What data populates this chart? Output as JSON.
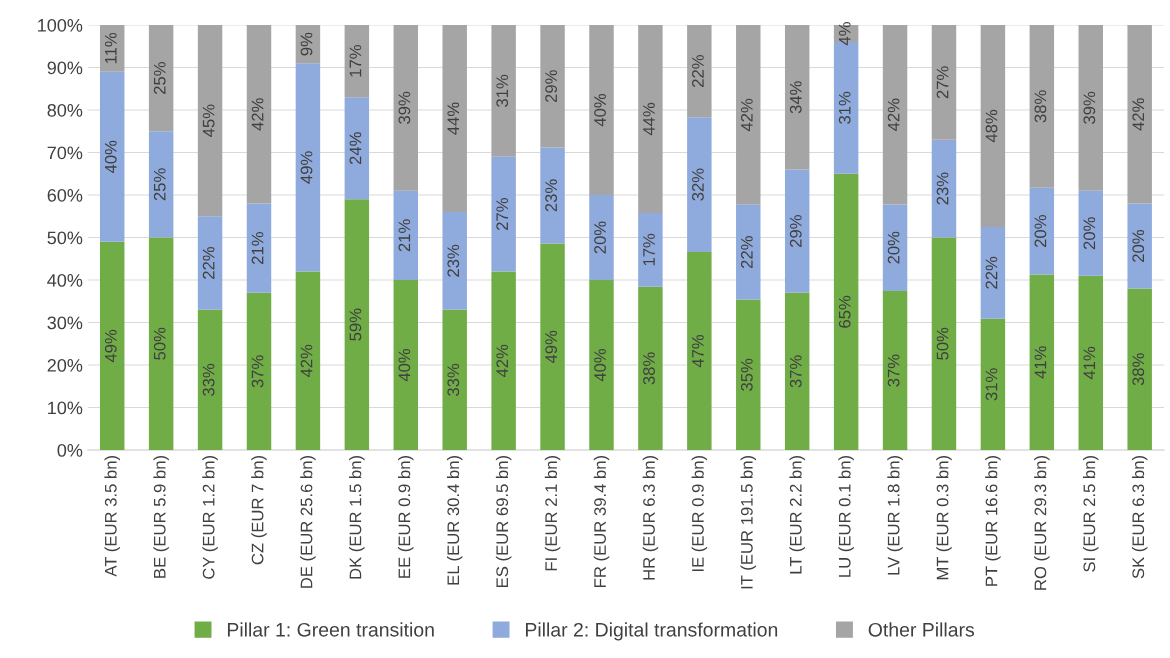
{
  "chart_data": {
    "type": "bar",
    "stacked": true,
    "categories": [
      "AT (EUR 3.5 bn)",
      "BE (EUR 5.9 bn)",
      "CY (EUR 1.2 bn)",
      "CZ (EUR 7 bn)",
      "DE (EUR 25.6 bn)",
      "DK (EUR 1.5 bn)",
      "EE (EUR 0.9 bn)",
      "EL (EUR 30.4 bn)",
      "ES (EUR 69.5 bn)",
      "FI (EUR 2.1 bn)",
      "FR (EUR 39.4 bn)",
      "HR (EUR 6.3 bn)",
      "IE (EUR 0.9 bn)",
      "IT (EUR 191.5 bn)",
      "LT (EUR 2.2 bn)",
      "LU (EUR 0.1 bn)",
      "LV (EUR 1.8 bn)",
      "MT (EUR 0.3 bn)",
      "PT (EUR 16.6 bn)",
      "RO (EUR 29.3 bn)",
      "SI (EUR 2.5 bn)",
      "SK (EUR 6.3 bn)"
    ],
    "series": [
      {
        "name": "Pillar 1: Green transition",
        "color": "#70ad47",
        "values": [
          49,
          50,
          33,
          37,
          42,
          59,
          40,
          33,
          42,
          48.6,
          40,
          38.4,
          46.6,
          35.4,
          37,
          65,
          37.4,
          50,
          30.9,
          41.3,
          41,
          38
        ],
        "value_labels": [
          "49%",
          "50%",
          "33%",
          "37%",
          "42%",
          "59%",
          "40%",
          "33%",
          "42%",
          "49%",
          "40%",
          "38%",
          "47%",
          "35%",
          "37%",
          "65%",
          "37%",
          "50%",
          "31%",
          "41%",
          "41%",
          "38%"
        ]
      },
      {
        "name": "Pillar 2: Digital transformation",
        "color": "#8faadc",
        "values": [
          40,
          25,
          22,
          21,
          49,
          24,
          21,
          23,
          27,
          22.6,
          20,
          17.4,
          31.7,
          22.3,
          29,
          31,
          20.4,
          23,
          21.6,
          20.4,
          20,
          20
        ],
        "value_labels": [
          "40%",
          "25%",
          "22%",
          "21%",
          "49%",
          "24%",
          "21%",
          "23%",
          "27%",
          "23%",
          "20%",
          "17%",
          "32%",
          "22%",
          "29%",
          "31%",
          "20%",
          "23%",
          "22%",
          "20%",
          "20%",
          "20%"
        ]
      },
      {
        "name": "Other Pillars",
        "color": "#a5a5a5",
        "values": [
          11,
          25,
          45,
          42,
          9,
          17,
          39,
          44,
          31,
          28.8,
          40,
          44.2,
          21.7,
          42.3,
          34,
          4,
          42.2,
          27,
          47.5,
          38.3,
          39,
          42
        ],
        "value_labels": [
          "11%",
          "25%",
          "45%",
          "42%",
          "9%",
          "17%",
          "39%",
          "44%",
          "31%",
          "29%",
          "40%",
          "44%",
          "22%",
          "42%",
          "34%",
          "4%",
          "42%",
          "27%",
          "48%",
          "38%",
          "39%",
          "42%"
        ]
      }
    ],
    "ylim": [
      0,
      100
    ],
    "yticks": [
      {
        "value": 0,
        "label": "0%"
      },
      {
        "value": 10,
        "label": "10%"
      },
      {
        "value": 20,
        "label": "20%"
      },
      {
        "value": 30,
        "label": "30%"
      },
      {
        "value": 40,
        "label": "40%"
      },
      {
        "value": 50,
        "label": "50%"
      },
      {
        "value": 60,
        "label": "60%"
      },
      {
        "value": 70,
        "label": "70%"
      },
      {
        "value": 80,
        "label": "80%"
      },
      {
        "value": 90,
        "label": "90%"
      },
      {
        "value": 100,
        "label": "100%"
      }
    ],
    "grid": "y",
    "legend": "bottom"
  }
}
